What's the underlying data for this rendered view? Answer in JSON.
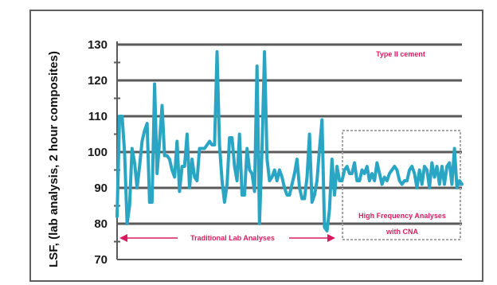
{
  "chart_data": {
    "type": "line",
    "ylabel": "LSF, (lab analysis, 2 hour composites)",
    "ylim": [
      70,
      130
    ],
    "yticks": [
      "70",
      "80",
      "90",
      "100",
      "110",
      "120",
      "130"
    ],
    "grid": true,
    "series": [
      {
        "color": "#2aa6c4",
        "values": [
          82,
          110,
          110,
          100,
          80,
          85,
          101,
          97,
          90,
          96,
          103,
          106,
          108,
          86,
          86,
          119,
          94,
          103,
          113,
          99,
          99,
          98,
          95,
          93,
          103,
          89,
          96,
          96,
          105,
          90,
          98,
          93,
          92,
          101,
          101,
          101,
          102,
          103,
          102,
          102,
          128,
          102,
          92,
          86,
          91,
          104,
          104,
          96,
          92,
          105,
          88,
          88,
          101,
          95,
          94,
          89,
          124,
          80,
          101,
          128,
          98,
          92,
          93,
          95,
          92,
          95,
          93,
          90,
          88,
          88,
          91,
          94,
          98,
          90,
          87,
          87,
          93,
          105,
          86,
          88,
          92,
          101,
          109,
          79,
          78,
          84,
          98,
          88,
          96,
          92,
          92,
          95,
          96,
          94,
          94,
          97,
          92,
          92,
          95,
          94,
          96,
          92,
          94,
          92,
          97,
          94,
          91,
          93,
          92,
          94,
          95,
          96,
          95,
          92,
          91,
          92,
          92,
          95,
          96,
          94,
          90,
          95,
          91,
          96,
          95,
          90,
          97,
          93,
          96,
          91,
          96,
          91,
          96,
          97,
          91,
          101,
          90,
          92,
          91
        ]
      }
    ],
    "annotations": {
      "type_label": "Type II cement",
      "traditional_label": "Traditional Lab Analyses",
      "hf_line1": "High Frequency Analyses",
      "hf_line2": "with CNA"
    },
    "colors": {
      "line": "#2aa6c4",
      "annotation": "#d81b60",
      "grid": "#5a5a5a",
      "box": "#a8a8a8"
    }
  }
}
